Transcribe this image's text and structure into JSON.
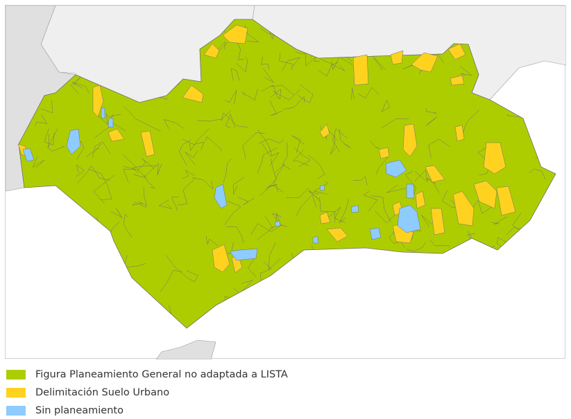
{
  "map": {
    "colors": {
      "sea": "#ffffff",
      "spain": "#efefef",
      "portugal_morocco": "#e0e0e0",
      "border": "#6f6f6f"
    }
  },
  "legend": {
    "items": [
      {
        "label": "Figura Planeamiento General no adaptada a LISTA",
        "color": "#aecd00"
      },
      {
        "label": "Delimitación Suelo Urbano",
        "color": "#ffd21f"
      },
      {
        "label": "Sin planeamiento",
        "color": "#8ecbff"
      }
    ]
  }
}
